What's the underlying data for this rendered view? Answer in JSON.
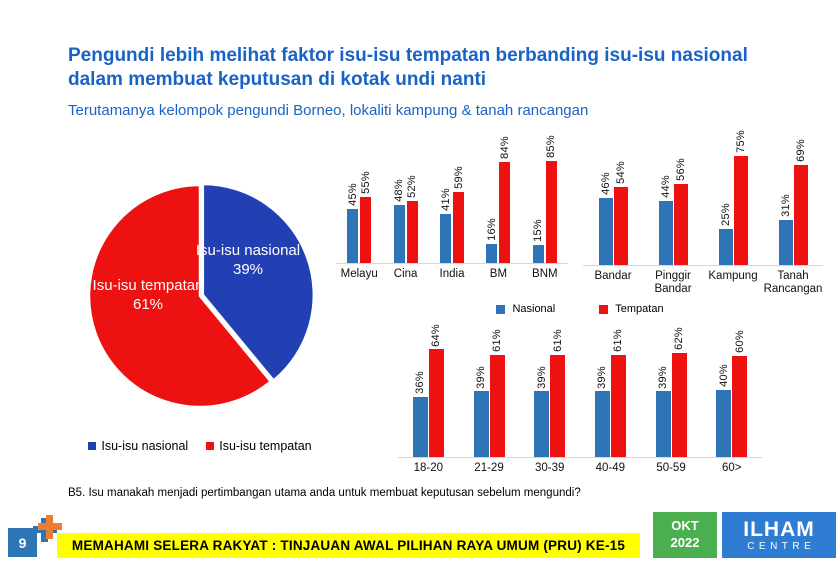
{
  "slide": {
    "title": "Pengundi lebih melihat faktor isu-isu tempatan berbanding isu-isu nasional dalam membuat keputusan di kotak undi nanti",
    "subtitle": "Terutamanya kelompok pengundi Borneo, lokaliti kampung & tanah rancangan",
    "question": "B5. Isu manakah menjadi pertimbangan utama anda untuk membuat keputusan sebelum mengundi?",
    "banner": "MEMAHAMI SELERA RAKYAT : TINJAUAN AWAL PILIHAN RAYA UMUM (PRU) KE-15",
    "page_number": "9",
    "date_badge": {
      "line1": "OKT",
      "line2": "2022"
    },
    "logo": {
      "line1": "ILHAM",
      "line2": "CENTRE"
    }
  },
  "colors": {
    "title_blue": "#1A63C6",
    "pie_nasional": "#2240B4",
    "pie_tempatan": "#EE1111",
    "bar_nasional": "#2E75B6",
    "bar_tempatan": "#EE1111",
    "banner_bg": "#FFFF00",
    "badge_green": "#4BAE4F",
    "logo_blue": "#2F7CD3",
    "page_badge_blue": "#2E75B6",
    "plus_orange": "#ED7D31"
  },
  "chart_data": [
    {
      "type": "pie",
      "labels": [
        "Isu-isu nasional",
        "Isu-isu tempatan"
      ],
      "values": [
        39,
        61
      ],
      "slices": [
        {
          "label": "Isu-isu nasional",
          "display": "39%"
        },
        {
          "label": "Isu-isu tempatan",
          "display": "61%"
        }
      ],
      "legend": [
        "Isu-isu nasional",
        "Isu-isu tempatan"
      ],
      "legend_position": "bottom"
    },
    {
      "type": "bar",
      "categories": [
        "Melayu",
        "Cina",
        "India",
        "BM",
        "BNM"
      ],
      "series": [
        {
          "name": "Nasional",
          "values": [
            45,
            48,
            41,
            16,
            15
          ]
        },
        {
          "name": "Tempatan",
          "values": [
            55,
            52,
            59,
            84,
            85
          ]
        }
      ],
      "value_suffix": "%",
      "ylim": [
        0,
        100
      ],
      "grid": false
    },
    {
      "type": "bar",
      "categories": [
        "Bandar",
        "Pinggir Bandar",
        "Kampung",
        "Tanah Rancangan"
      ],
      "series": [
        {
          "name": "Nasional",
          "values": [
            46,
            44,
            25,
            31
          ]
        },
        {
          "name": "Tempatan",
          "values": [
            54,
            56,
            75,
            69
          ]
        }
      ],
      "value_suffix": "%",
      "ylim": [
        0,
        100
      ],
      "grid": false
    },
    {
      "type": "bar",
      "categories": [
        "18-20",
        "21-29",
        "30-39",
        "40-49",
        "50-59",
        "60>"
      ],
      "series": [
        {
          "name": "Nasional",
          "values": [
            36,
            39,
            39,
            39,
            39,
            40
          ]
        },
        {
          "name": "Tempatan",
          "values": [
            64,
            61,
            61,
            61,
            62,
            60
          ]
        }
      ],
      "value_suffix": "%",
      "ylim": [
        0,
        100
      ],
      "grid": false,
      "legend": [
        "Nasional",
        "Tempatan"
      ],
      "legend_position": "top"
    }
  ]
}
